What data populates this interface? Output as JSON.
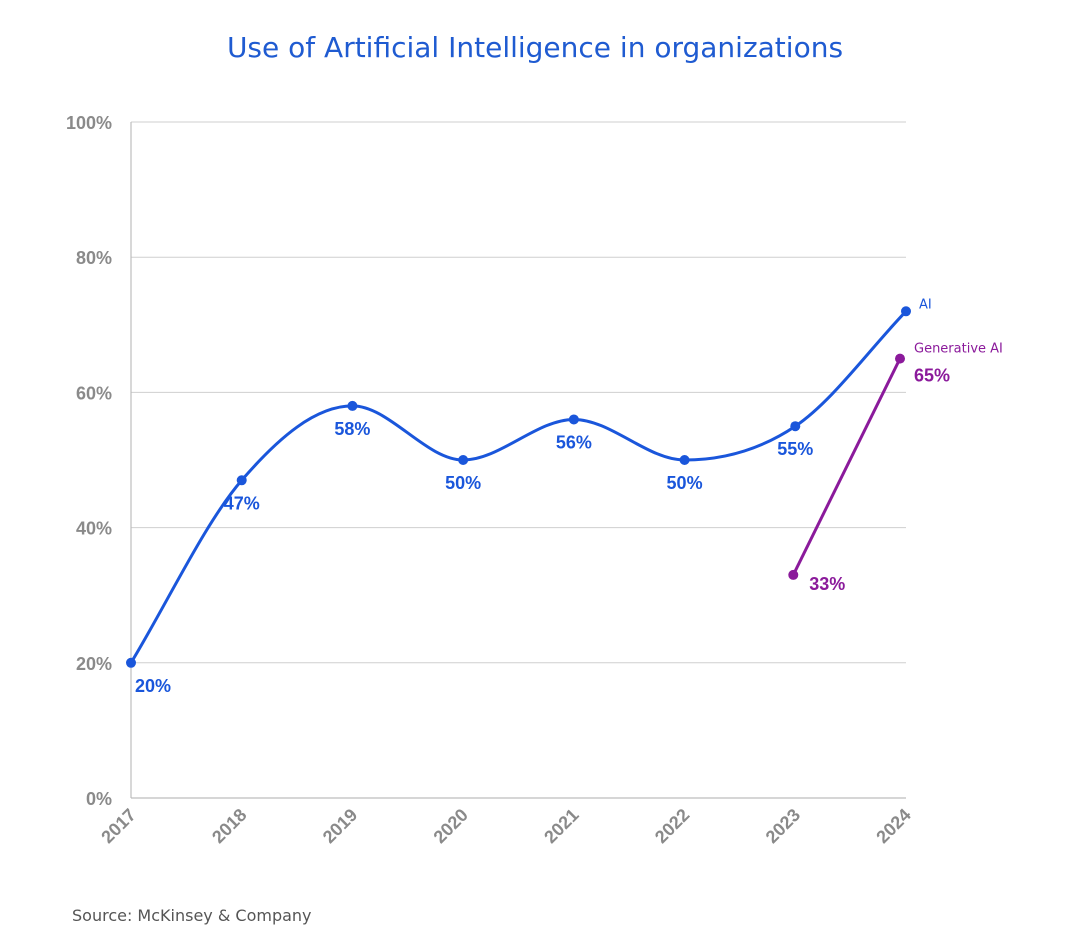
{
  "chart_data": {
    "type": "line",
    "title": "Use of Artificial Intelligence in organizations",
    "xlabel": "",
    "ylabel": "",
    "categories": [
      "2017",
      "2018",
      "2019",
      "2020",
      "2021",
      "2022",
      "2023",
      "2024"
    ],
    "ylim": [
      0,
      100
    ],
    "yticks": [
      "0%",
      "20%",
      "40%",
      "60%",
      "80%",
      "100%"
    ],
    "ytick_values": [
      0,
      20,
      40,
      60,
      80,
      100
    ],
    "grid": true,
    "series": [
      {
        "name": "AI",
        "color": "#1a56db",
        "values": [
          20,
          47,
          58,
          50,
          56,
          50,
          55,
          72
        ],
        "labels": [
          "20%",
          "47%",
          "58%",
          "50%",
          "56%",
          "50%",
          "55%",
          null
        ]
      },
      {
        "name": "Generative AI",
        "color": "#8b1a9b",
        "x": [
          "2023",
          "2024"
        ],
        "values": [
          33,
          65
        ],
        "labels": [
          "33%",
          "65%"
        ]
      }
    ],
    "legend_position": "right-end",
    "source": "Source: McKinsey & Company"
  }
}
